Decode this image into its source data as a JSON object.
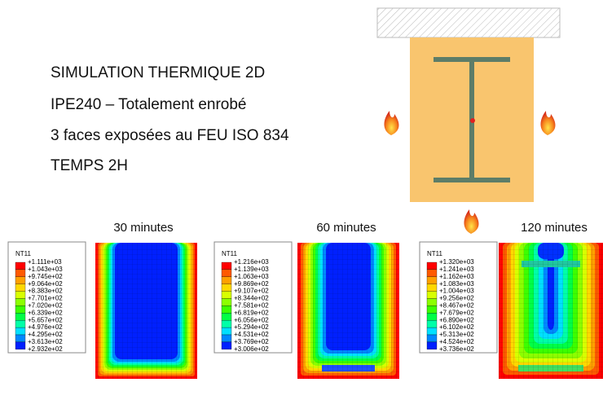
{
  "header": {
    "lines": [
      "SIMULATION THERMIQUE 2D",
      "IPE240 – Totalement enrobé",
      "3 faces exposées au FEU ISO 834",
      "TEMPS 2H"
    ]
  },
  "panels": [
    {
      "time": "30 minutes",
      "legend_title": "NT11",
      "legend_values": [
        "+1.111e+03",
        "+1.043e+03",
        "+9.745e+02",
        "+9.064e+02",
        "+8.383e+02",
        "+7.701e+02",
        "+7.020e+02",
        "+6.339e+02",
        "+5.657e+02",
        "+4.976e+02",
        "+4.295e+02",
        "+3.613e+02",
        "+2.932e+02"
      ]
    },
    {
      "time": "60 minutes",
      "legend_title": "NT11",
      "legend_values": [
        "+1.216e+03",
        "+1.139e+03",
        "+1.063e+03",
        "+9.869e+02",
        "+9.107e+02",
        "+8.344e+02",
        "+7.581e+02",
        "+6.819e+02",
        "+6.056e+02",
        "+5.294e+02",
        "+4.531e+02",
        "+3.769e+02",
        "+3.006e+02"
      ]
    },
    {
      "time": "120 minutes",
      "legend_title": "NT11",
      "legend_values": [
        "+1.320e+03",
        "+1.241e+03",
        "+1.162e+03",
        "+1.083e+03",
        "+1.004e+03",
        "+9.256e+02",
        "+8.467e+02",
        "+7.679e+02",
        "+6.890e+02",
        "+6.102e+02",
        "+5.313e+02",
        "+4.524e+02",
        "+3.736e+02"
      ]
    }
  ]
}
